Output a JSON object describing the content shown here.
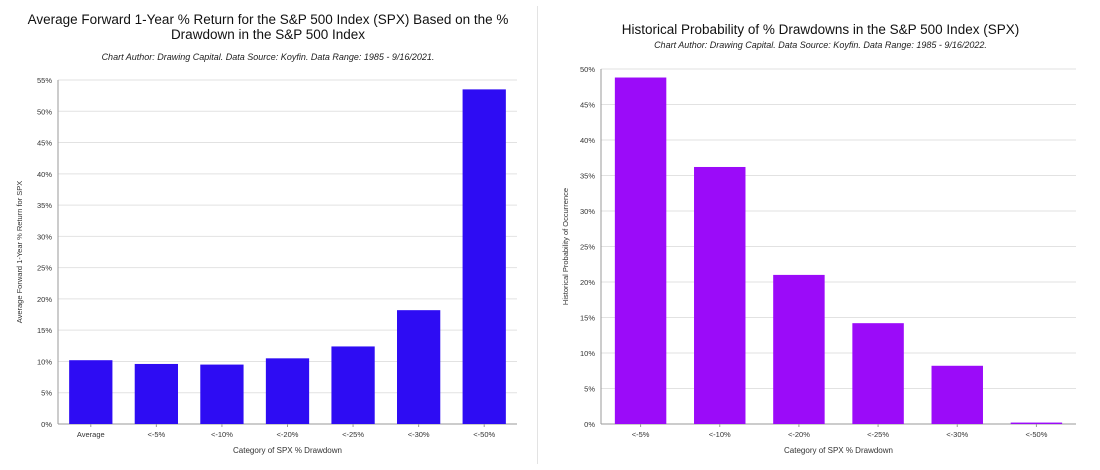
{
  "chart_data": [
    {
      "type": "bar",
      "title_line1": "Average Forward 1-Year % Return for the S&P 500 Index (SPX) Based on the %",
      "title_line2": "Drawdown in the S&P 500 Index",
      "subtitle": "Chart Author: Drawing Capital. Data Source: Koyfin. Data Range: 1985 - 9/16/2021.",
      "xlabel": "Category of SPX % Drawdown",
      "ylabel": "Average Forward 1-Year % Return for SPX",
      "categories": [
        "Average",
        "<-5%",
        "<-10%",
        "<-20%",
        "<-25%",
        "<-30%",
        "<-50%"
      ],
      "values": [
        10.2,
        9.6,
        9.5,
        10.5,
        12.4,
        18.2,
        53.5
      ],
      "ylim": [
        0,
        55
      ],
      "yticks": [
        0,
        5,
        10,
        15,
        20,
        25,
        30,
        35,
        40,
        45,
        50,
        55
      ],
      "ytick_suffix": "%",
      "color": "#2e0cf3",
      "grid": true
    },
    {
      "type": "bar",
      "title_line1": "Historical Probability of % Drawdowns in the S&P 500 Index (SPX)",
      "title_line2": "",
      "subtitle": "Chart Author: Drawing Capital. Data Source: Koyfin. Data Range: 1985 - 9/16/2022.",
      "xlabel": "Category of SPX % Drawdown",
      "ylabel": "Historical Probability of Occurrence",
      "categories": [
        "<-5%",
        "<-10%",
        "<-20%",
        "<-25%",
        "<-30%",
        "<-50%"
      ],
      "values": [
        48.8,
        36.2,
        21.0,
        14.2,
        8.2,
        0.2
      ],
      "ylim": [
        0,
        50
      ],
      "yticks": [
        0,
        5,
        10,
        15,
        20,
        25,
        30,
        35,
        40,
        45,
        50
      ],
      "ytick_suffix": "%",
      "color": "#9b0bf9",
      "grid": true
    }
  ]
}
